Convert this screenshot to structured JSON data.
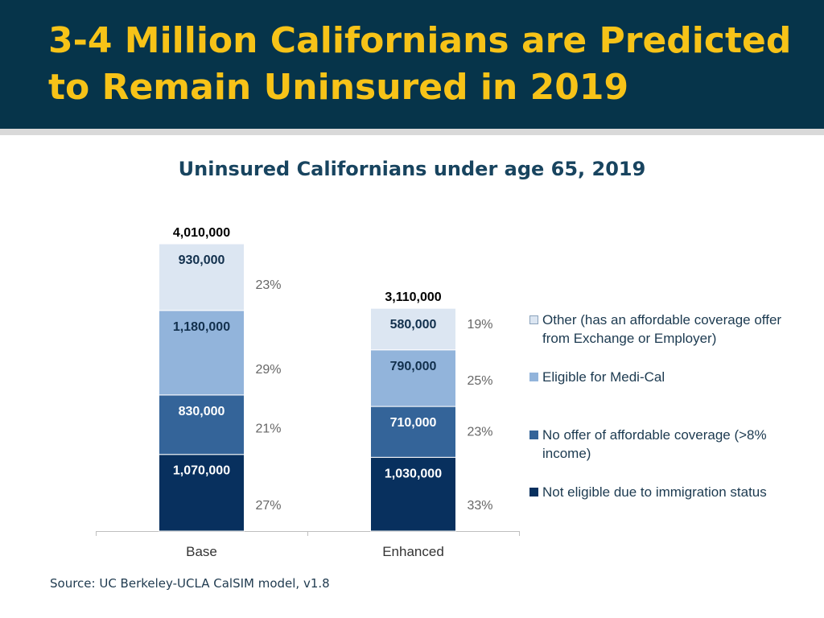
{
  "header": {
    "title": "3-4 Million Californians are Predicted to Remain Uninsured in 2019"
  },
  "chart_data": {
    "type": "bar",
    "stacked": true,
    "title": "Uninsured Californians under age 65, 2019",
    "categories": [
      "Base",
      "Enhanced"
    ],
    "totals": [
      4010000,
      3110000
    ],
    "total_labels": [
      "4,010,000",
      "3,110,000"
    ],
    "ylim": [
      0,
      4010000
    ],
    "grid": false,
    "legend_position": "right",
    "series": [
      {
        "name": "Not eligible due to immigration status",
        "values": [
          1070000,
          1030000
        ],
        "value_labels": [
          "1,070,000",
          "1,030,000"
        ],
        "percents": [
          "27%",
          "33%"
        ],
        "color": "#08305e"
      },
      {
        "name": "No offer of affordable coverage (>8% income)",
        "values": [
          830000,
          710000
        ],
        "value_labels": [
          "830,000",
          "710,000"
        ],
        "percents": [
          "21%",
          "23%"
        ],
        "color": "#346499"
      },
      {
        "name": "Eligible for Medi-Cal",
        "values": [
          1180000,
          790000
        ],
        "value_labels": [
          "1,180,000",
          "790,000"
        ],
        "percents": [
          "29%",
          "25%"
        ],
        "color": "#92b4db"
      },
      {
        "name": "Other (has an affordable coverage offer from Exchange or Employer)",
        "values": [
          930000,
          580000
        ],
        "value_labels": [
          "930,000",
          "580,000"
        ],
        "percents": [
          "23%",
          "19%"
        ],
        "color": "#dce6f2"
      }
    ]
  },
  "legend": {
    "items": [
      {
        "text": "Other (has an affordable coverage offer from Exchange or Employer)",
        "color": "#dce6f2"
      },
      {
        "text": "Eligible for Medi-Cal",
        "color": "#92b4db"
      },
      {
        "text": "No offer of affordable coverage (>8% income)",
        "color": "#346499"
      },
      {
        "text": "Not eligible due to immigration status",
        "color": "#08305e"
      }
    ]
  },
  "footer": {
    "source": "Source: UC Berkeley-UCLA CalSIM model, v1.8"
  }
}
